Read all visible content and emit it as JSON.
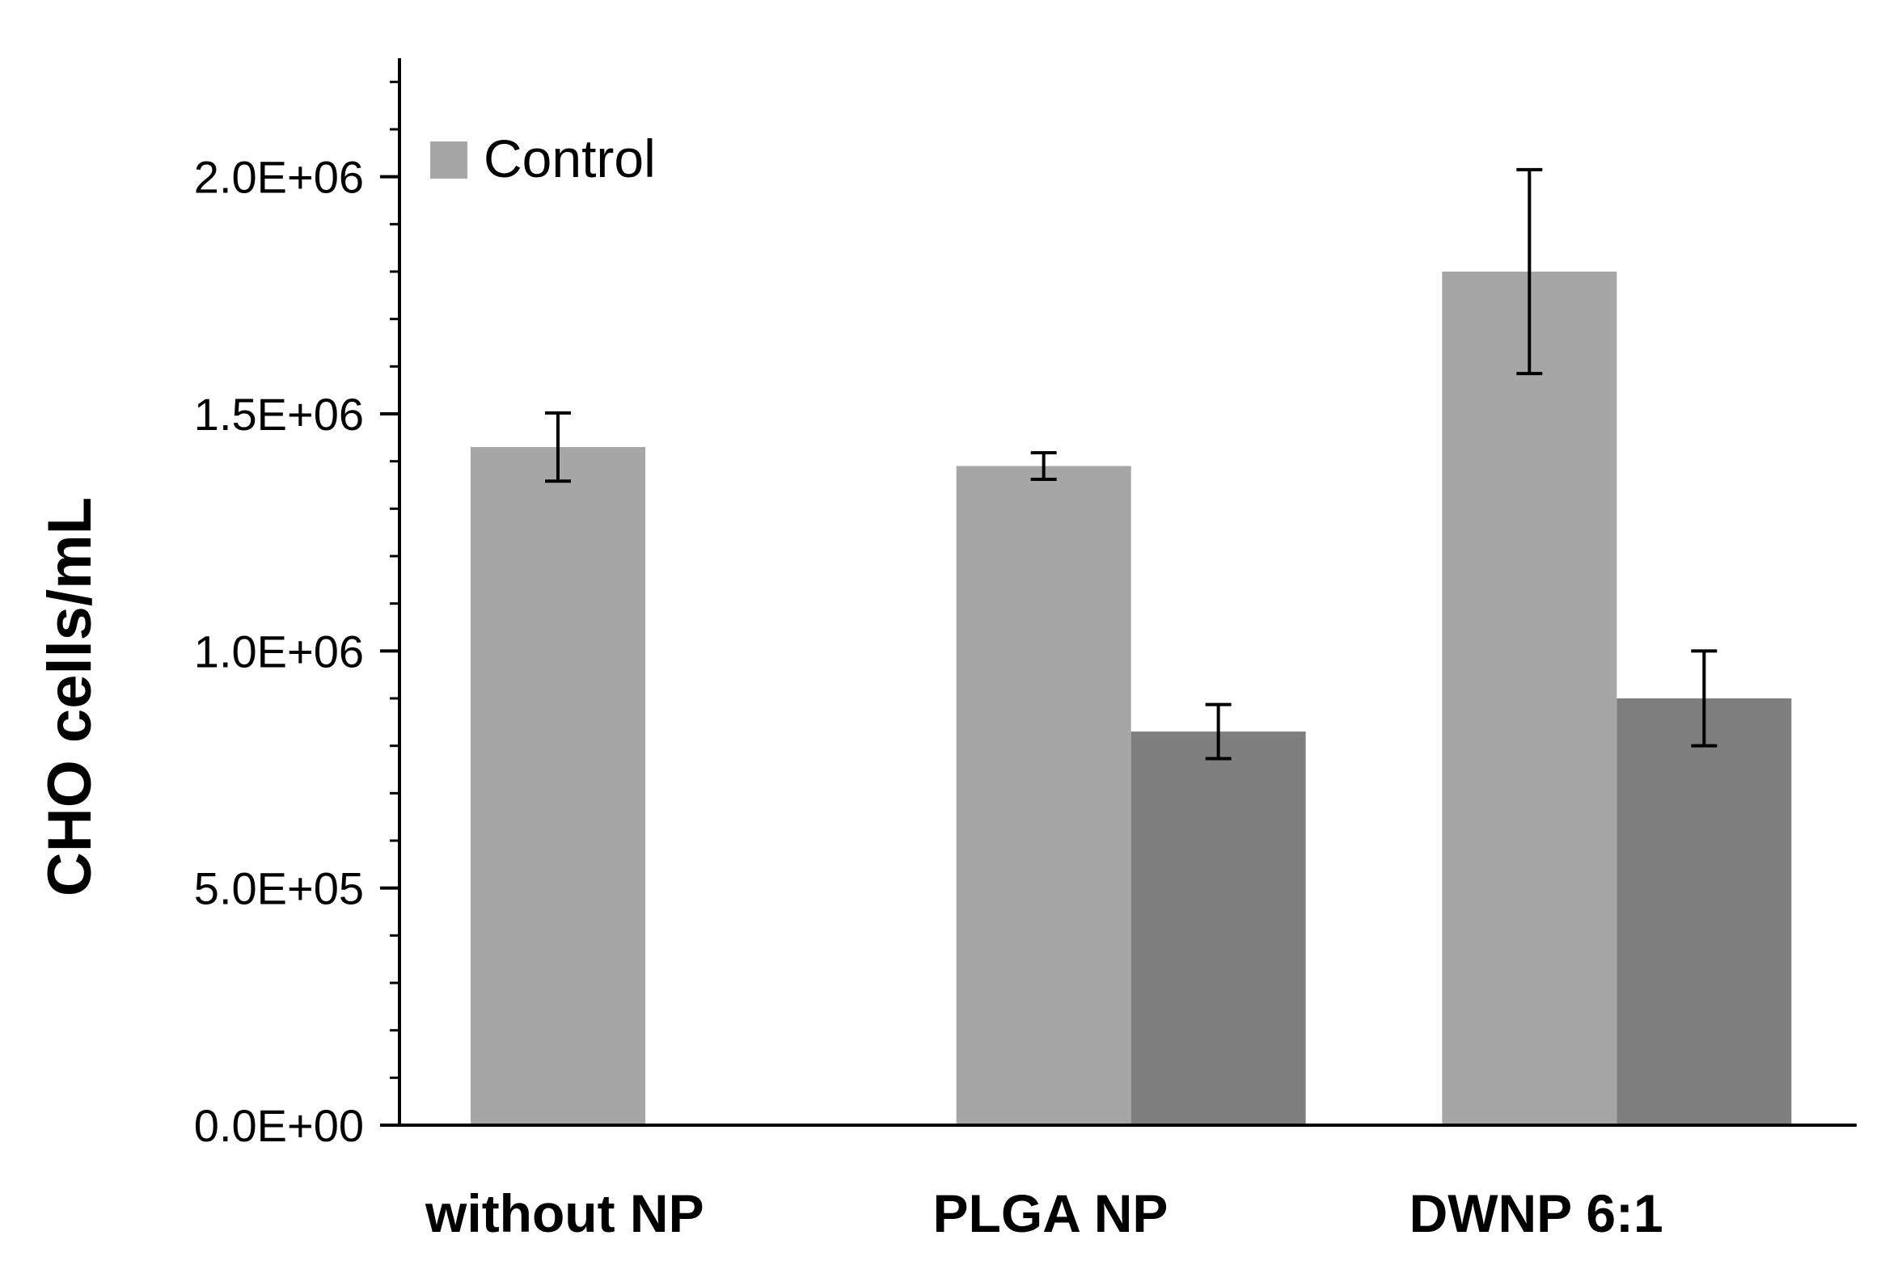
{
  "chart_data": {
    "type": "bar",
    "title": "",
    "xlabel": "",
    "ylabel": "CHO cells/mL",
    "ylim": [
      0,
      2250000
    ],
    "ytick_values": [
      0,
      500000,
      1000000,
      1500000,
      2000000
    ],
    "ytick_labels": [
      "0.0E+00",
      "5.0E+05",
      "1.0E+06",
      "1.5E+06",
      "2.0E+06"
    ],
    "minor_tick_step": 100000,
    "categories": [
      "without NP",
      "PLGA NP",
      "DWNP 6:1"
    ],
    "legend_position": "top-left",
    "grid": false,
    "series": [
      {
        "name": "Control",
        "show_in_legend": true,
        "color": "#a6a6a6",
        "values": [
          1430000,
          1390000,
          1800000
        ],
        "errors": [
          72000,
          28000,
          215000
        ]
      },
      {
        "name": "",
        "show_in_legend": false,
        "color": "#7f7f7f",
        "values": [
          null,
          830000,
          900000
        ],
        "errors": [
          null,
          57000,
          100000
        ]
      }
    ]
  }
}
